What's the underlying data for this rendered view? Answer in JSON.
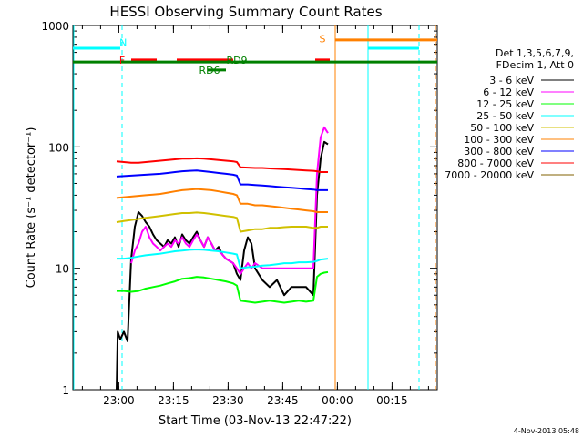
{
  "chart_data": {
    "type": "line",
    "title": "HESSI Observing Summary Count Rates",
    "xlabel": "Start Time (03-Nov-13 22:47:22)",
    "ylabel": "Count Rate (s⁻¹ detector⁻¹)",
    "y_scale": "log",
    "ylim": [
      1,
      1000
    ],
    "x_unit": "minutes after 2013-11-03 22:47:22",
    "xlim": [
      0,
      100
    ],
    "x_ticks": [
      {
        "t": 12.6,
        "label": "23:00"
      },
      {
        "t": 27.6,
        "label": "23:15"
      },
      {
        "t": 42.6,
        "label": "23:30"
      },
      {
        "t": 57.6,
        "label": "23:45"
      },
      {
        "t": 72.6,
        "label": "00:00"
      },
      {
        "t": 87.6,
        "label": "00:15"
      }
    ],
    "y_ticks": [
      {
        "v": 1,
        "label": "1"
      },
      {
        "v": 10,
        "label": "10"
      },
      {
        "v": 100,
        "label": "100"
      },
      {
        "v": 1000,
        "label": "1000"
      }
    ],
    "legend_header": [
      "Det 1,3,5,6,7,9,",
      "FDecim 1, Att 0"
    ],
    "legend_placement": "right",
    "series": [
      {
        "name": "3 - 6 keV",
        "color": "#000000",
        "points": [
          [
            12,
            1.0
          ],
          [
            12.3,
            3
          ],
          [
            13,
            2.6
          ],
          [
            14,
            3
          ],
          [
            15,
            2.5
          ],
          [
            16,
            12
          ],
          [
            17,
            22
          ],
          [
            18,
            29
          ],
          [
            19,
            27
          ],
          [
            20,
            24
          ],
          [
            21,
            22
          ],
          [
            22,
            19
          ],
          [
            23,
            17
          ],
          [
            24,
            16
          ],
          [
            25,
            15
          ],
          [
            26,
            17
          ],
          [
            27,
            16
          ],
          [
            28,
            18
          ],
          [
            29,
            15
          ],
          [
            30,
            19
          ],
          [
            31,
            17
          ],
          [
            32,
            16
          ],
          [
            33,
            18
          ],
          [
            34,
            20
          ],
          [
            35,
            17
          ],
          [
            36,
            15
          ],
          [
            37,
            18
          ],
          [
            38,
            16
          ],
          [
            39,
            14
          ],
          [
            40,
            15
          ],
          [
            41,
            13
          ],
          [
            42,
            12
          ],
          [
            44,
            11
          ],
          [
            45,
            9
          ],
          [
            46,
            8
          ],
          [
            47,
            14
          ],
          [
            48,
            18
          ],
          [
            49,
            16
          ],
          [
            50,
            10
          ],
          [
            52,
            8
          ],
          [
            54,
            7
          ],
          [
            56,
            8
          ],
          [
            58,
            6
          ],
          [
            60,
            7
          ],
          [
            62,
            7
          ],
          [
            64,
            7
          ],
          [
            66,
            6
          ],
          [
            67,
            40
          ],
          [
            68,
            80
          ],
          [
            69,
            110
          ],
          [
            70,
            105
          ]
        ]
      },
      {
        "name": "6 - 12 keV",
        "color": "#ff00ff",
        "points": [
          [
            16,
            11
          ],
          [
            17,
            14
          ],
          [
            18,
            16
          ],
          [
            19,
            20
          ],
          [
            20,
            22
          ],
          [
            21,
            18
          ],
          [
            22,
            16
          ],
          [
            23,
            15
          ],
          [
            24,
            14
          ],
          [
            25,
            15
          ],
          [
            26,
            16
          ],
          [
            27,
            15
          ],
          [
            28,
            17
          ],
          [
            29,
            16
          ],
          [
            30,
            18
          ],
          [
            31,
            16
          ],
          [
            32,
            15
          ],
          [
            33,
            17
          ],
          [
            34,
            19
          ],
          [
            35,
            17
          ],
          [
            36,
            15
          ],
          [
            37,
            18
          ],
          [
            38,
            16
          ],
          [
            39,
            14
          ],
          [
            40,
            14
          ],
          [
            41,
            13
          ],
          [
            42,
            12
          ],
          [
            44,
            11
          ],
          [
            45,
            10
          ],
          [
            46,
            9
          ],
          [
            47,
            10
          ],
          [
            48,
            11
          ],
          [
            49,
            10
          ],
          [
            50,
            11
          ],
          [
            52,
            10
          ],
          [
            54,
            10
          ],
          [
            56,
            10
          ],
          [
            58,
            10
          ],
          [
            60,
            10
          ],
          [
            62,
            10
          ],
          [
            64,
            10
          ],
          [
            66,
            10
          ],
          [
            67,
            60
          ],
          [
            68,
            120
          ],
          [
            69,
            145
          ],
          [
            70,
            130
          ]
        ]
      },
      {
        "name": "12 - 25 keV",
        "color": "#00ff00",
        "points": [
          [
            12,
            6.5
          ],
          [
            14,
            6.5
          ],
          [
            16,
            6.4
          ],
          [
            18,
            6.5
          ],
          [
            20,
            6.8
          ],
          [
            22,
            7
          ],
          [
            24,
            7.2
          ],
          [
            26,
            7.5
          ],
          [
            28,
            7.8
          ],
          [
            30,
            8.2
          ],
          [
            32,
            8.3
          ],
          [
            34,
            8.5
          ],
          [
            36,
            8.4
          ],
          [
            38,
            8.2
          ],
          [
            40,
            8
          ],
          [
            42,
            7.8
          ],
          [
            44,
            7.5
          ],
          [
            45,
            7.2
          ],
          [
            46,
            5.4
          ],
          [
            48,
            5.3
          ],
          [
            50,
            5.2
          ],
          [
            52,
            5.3
          ],
          [
            54,
            5.4
          ],
          [
            56,
            5.3
          ],
          [
            58,
            5.2
          ],
          [
            60,
            5.3
          ],
          [
            62,
            5.4
          ],
          [
            64,
            5.3
          ],
          [
            66,
            5.4
          ],
          [
            67,
            8.5
          ],
          [
            68,
            9
          ],
          [
            69,
            9.2
          ],
          [
            70,
            9.3
          ]
        ]
      },
      {
        "name": "25 - 50 keV",
        "color": "#00ffff",
        "points": [
          [
            12,
            12
          ],
          [
            14,
            12
          ],
          [
            16,
            12.2
          ],
          [
            18,
            12.5
          ],
          [
            20,
            12.8
          ],
          [
            22,
            13
          ],
          [
            24,
            13.2
          ],
          [
            26,
            13.5
          ],
          [
            28,
            13.8
          ],
          [
            30,
            14
          ],
          [
            32,
            14.2
          ],
          [
            34,
            14.3
          ],
          [
            36,
            14.2
          ],
          [
            38,
            14
          ],
          [
            40,
            13.8
          ],
          [
            42,
            13.5
          ],
          [
            44,
            13.2
          ],
          [
            45,
            13
          ],
          [
            46,
            10
          ],
          [
            48,
            10.2
          ],
          [
            50,
            10.3
          ],
          [
            52,
            10.5
          ],
          [
            54,
            10.6
          ],
          [
            56,
            10.8
          ],
          [
            58,
            11
          ],
          [
            60,
            11
          ],
          [
            62,
            11.2
          ],
          [
            64,
            11.2
          ],
          [
            66,
            11.3
          ],
          [
            67,
            11.5
          ],
          [
            68,
            11.8
          ],
          [
            69,
            11.9
          ],
          [
            70,
            12
          ]
        ]
      },
      {
        "name": "50 - 100 keV",
        "color": "#d0c000",
        "points": [
          [
            12,
            24
          ],
          [
            14,
            24.5
          ],
          [
            16,
            25
          ],
          [
            18,
            25.5
          ],
          [
            20,
            26
          ],
          [
            22,
            26.5
          ],
          [
            24,
            27
          ],
          [
            26,
            27.5
          ],
          [
            28,
            28
          ],
          [
            30,
            28.5
          ],
          [
            32,
            28.5
          ],
          [
            34,
            28.8
          ],
          [
            36,
            28.5
          ],
          [
            38,
            28
          ],
          [
            40,
            27.5
          ],
          [
            42,
            27
          ],
          [
            44,
            26.5
          ],
          [
            45,
            26
          ],
          [
            46,
            20
          ],
          [
            48,
            20.5
          ],
          [
            50,
            21
          ],
          [
            52,
            21
          ],
          [
            54,
            21.5
          ],
          [
            56,
            21.5
          ],
          [
            58,
            21.8
          ],
          [
            60,
            22
          ],
          [
            62,
            22
          ],
          [
            64,
            22
          ],
          [
            66,
            21.5
          ],
          [
            67,
            21.5
          ],
          [
            68,
            22
          ],
          [
            69,
            22
          ],
          [
            70,
            22
          ]
        ]
      },
      {
        "name": "100 - 300 keV",
        "color": "#ff8000",
        "points": [
          [
            12,
            38
          ],
          [
            14,
            38.5
          ],
          [
            16,
            39
          ],
          [
            18,
            39.5
          ],
          [
            20,
            40
          ],
          [
            22,
            40.5
          ],
          [
            24,
            41
          ],
          [
            26,
            42
          ],
          [
            28,
            43
          ],
          [
            30,
            44
          ],
          [
            32,
            44.5
          ],
          [
            34,
            45
          ],
          [
            36,
            44.5
          ],
          [
            38,
            44
          ],
          [
            40,
            43
          ],
          [
            42,
            42
          ],
          [
            44,
            41
          ],
          [
            45,
            40
          ],
          [
            46,
            34
          ],
          [
            48,
            34
          ],
          [
            50,
            33
          ],
          [
            52,
            33
          ],
          [
            54,
            32.5
          ],
          [
            56,
            32
          ],
          [
            58,
            31.5
          ],
          [
            60,
            31
          ],
          [
            62,
            30.5
          ],
          [
            64,
            30
          ],
          [
            66,
            29.5
          ],
          [
            67,
            29
          ],
          [
            68,
            29
          ],
          [
            69,
            29
          ],
          [
            70,
            29
          ]
        ]
      },
      {
        "name": "300 - 800 keV",
        "color": "#0000ff",
        "points": [
          [
            12,
            57
          ],
          [
            14,
            57.5
          ],
          [
            16,
            58
          ],
          [
            18,
            58.5
          ],
          [
            20,
            59
          ],
          [
            22,
            59.5
          ],
          [
            24,
            60
          ],
          [
            26,
            61
          ],
          [
            28,
            62
          ],
          [
            30,
            63
          ],
          [
            32,
            63.5
          ],
          [
            34,
            64
          ],
          [
            36,
            63
          ],
          [
            38,
            62
          ],
          [
            40,
            61
          ],
          [
            42,
            60
          ],
          [
            44,
            59
          ],
          [
            45,
            58
          ],
          [
            46,
            49
          ],
          [
            48,
            49
          ],
          [
            50,
            48.5
          ],
          [
            52,
            48
          ],
          [
            54,
            47.5
          ],
          [
            56,
            47
          ],
          [
            58,
            46.5
          ],
          [
            60,
            46
          ],
          [
            62,
            45.5
          ],
          [
            64,
            45
          ],
          [
            66,
            44.5
          ],
          [
            67,
            44
          ],
          [
            68,
            44
          ],
          [
            69,
            44
          ],
          [
            70,
            44
          ]
        ]
      },
      {
        "name": "800 - 7000 keV",
        "color": "#ff0000",
        "points": [
          [
            12,
            76
          ],
          [
            14,
            75
          ],
          [
            16,
            74
          ],
          [
            18,
            74
          ],
          [
            20,
            75
          ],
          [
            22,
            76
          ],
          [
            24,
            77
          ],
          [
            26,
            78
          ],
          [
            28,
            79
          ],
          [
            30,
            80
          ],
          [
            32,
            80
          ],
          [
            34,
            80.5
          ],
          [
            36,
            80
          ],
          [
            38,
            79
          ],
          [
            40,
            78
          ],
          [
            42,
            77
          ],
          [
            44,
            76
          ],
          [
            45,
            75
          ],
          [
            46,
            68
          ],
          [
            48,
            67.5
          ],
          [
            50,
            67
          ],
          [
            52,
            67
          ],
          [
            54,
            66.5
          ],
          [
            56,
            66
          ],
          [
            58,
            65.5
          ],
          [
            60,
            65
          ],
          [
            62,
            64.5
          ],
          [
            64,
            64
          ],
          [
            66,
            63.5
          ],
          [
            67,
            63
          ],
          [
            68,
            62
          ],
          [
            69,
            62
          ],
          [
            70,
            62
          ]
        ]
      },
      {
        "name": "7000 - 20000 keV",
        "color": "#806000",
        "points": []
      }
    ],
    "annotations": [
      {
        "text": "N",
        "color": "#00ffff",
        "t": 13.5,
        "kind": "night",
        "level": 650,
        "start": 0,
        "end": 13
      },
      {
        "text": "N",
        "color": "#00ffff",
        "kind": "night",
        "level": 650,
        "start": 81,
        "end": 95
      },
      {
        "text": "F",
        "color": "#ff0000",
        "t": 14.2,
        "kind": "flare",
        "level": 520
      },
      {
        "text": "S",
        "color": "#ff8000",
        "t": 69.5,
        "kind": "saa",
        "level": 760,
        "start": 72,
        "end": 100
      },
      {
        "text": "RD6",
        "color": "#008000",
        "t": 39,
        "kind": "rd",
        "level": 430
      },
      {
        "text": "RD9",
        "color": "#008000",
        "t": 46,
        "kind": "rd",
        "level": 500
      }
    ],
    "grid": false
  },
  "timestamp": "4-Nov-2013 05:48"
}
